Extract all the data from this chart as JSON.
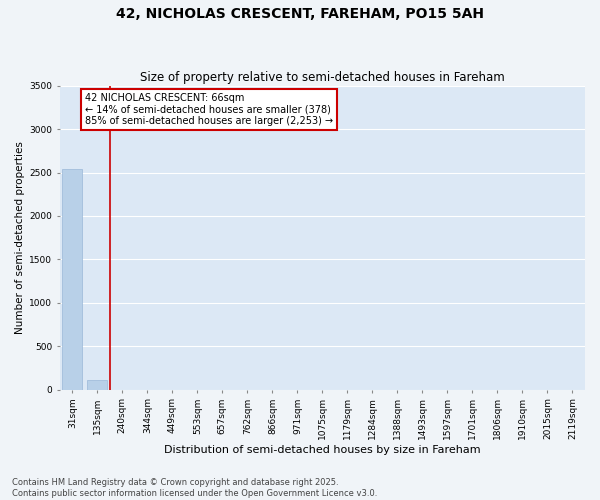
{
  "title": "42, NICHOLAS CRESCENT, FAREHAM, PO15 5AH",
  "subtitle": "Size of property relative to semi-detached houses in Fareham",
  "xlabel": "Distribution of semi-detached houses by size in Fareham",
  "ylabel": "Number of semi-detached properties",
  "categories": [
    "31sqm",
    "135sqm",
    "240sqm",
    "344sqm",
    "449sqm",
    "553sqm",
    "657sqm",
    "762sqm",
    "866sqm",
    "971sqm",
    "1075sqm",
    "1179sqm",
    "1284sqm",
    "1388sqm",
    "1493sqm",
    "1597sqm",
    "1701sqm",
    "1806sqm",
    "1910sqm",
    "2015sqm",
    "2119sqm"
  ],
  "values": [
    2540,
    110,
    0,
    0,
    0,
    0,
    0,
    0,
    0,
    0,
    0,
    0,
    0,
    0,
    0,
    0,
    0,
    0,
    0,
    0,
    0
  ],
  "bar_color": "#b8d0e8",
  "bar_edge_color": "#9ab8d8",
  "annotation_line1": "42 NICHOLAS CRESCENT: 66sqm",
  "annotation_line2": "← 14% of semi-detached houses are smaller (378)",
  "annotation_line3": "85% of semi-detached houses are larger (2,253) →",
  "annotation_box_facecolor": "#ffffff",
  "annotation_box_edgecolor": "#cc0000",
  "ylim": [
    0,
    3500
  ],
  "yticks": [
    0,
    500,
    1000,
    1500,
    2000,
    2500,
    3000,
    3500
  ],
  "fig_bg_color": "#f0f4f8",
  "plot_bg_color": "#dce8f5",
  "grid_color": "#ffffff",
  "footer_line1": "Contains HM Land Registry data © Crown copyright and database right 2025.",
  "footer_line2": "Contains public sector information licensed under the Open Government Licence v3.0.",
  "red_line_x": 1.5,
  "title_fontsize": 10,
  "subtitle_fontsize": 8.5,
  "ylabel_fontsize": 7.5,
  "xlabel_fontsize": 8,
  "tick_fontsize": 6.5,
  "annot_fontsize": 7,
  "footer_fontsize": 6
}
